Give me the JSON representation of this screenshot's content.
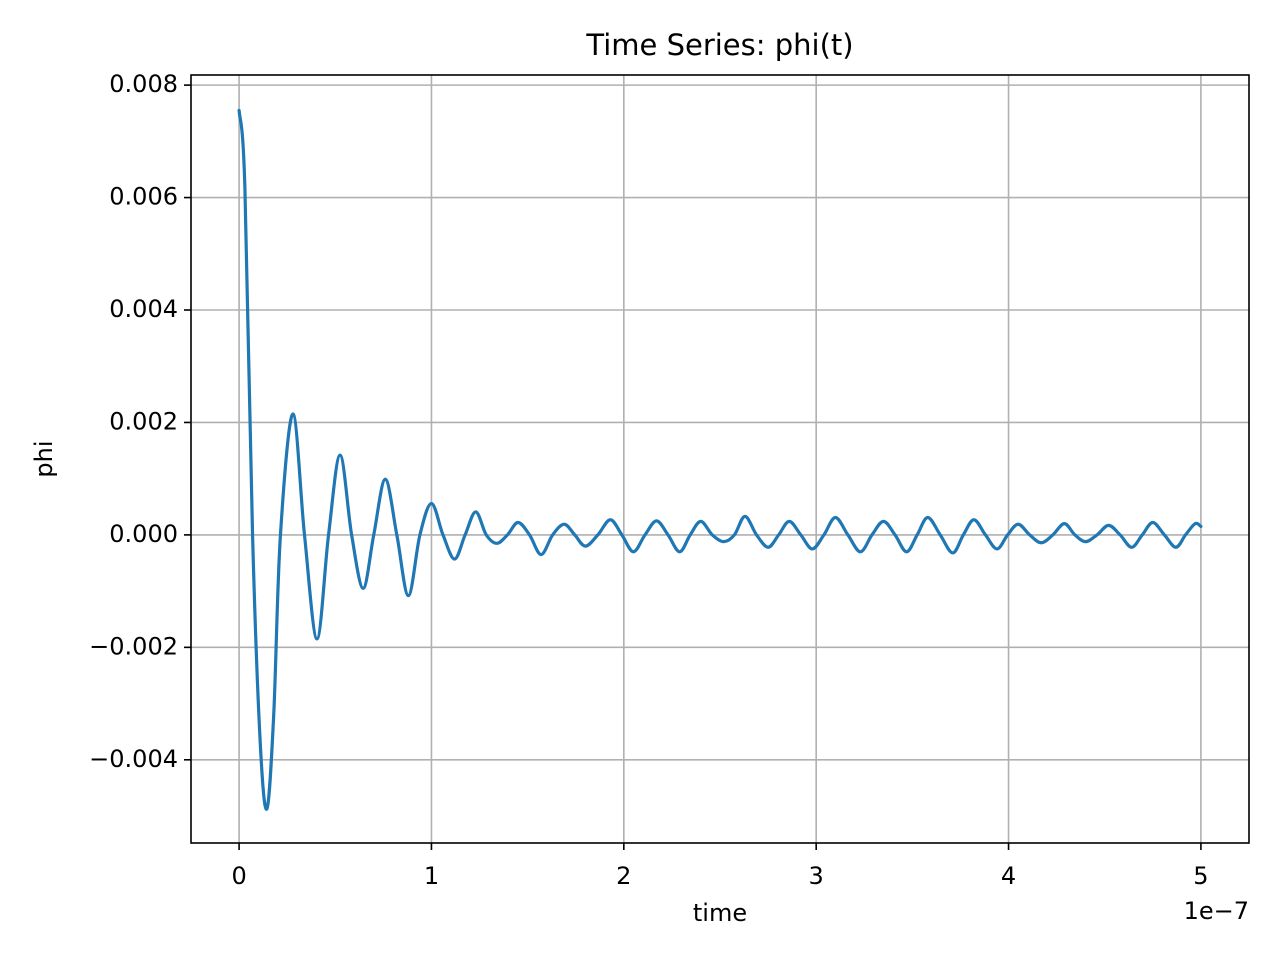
{
  "chart_data": {
    "type": "line",
    "title": "Time Series: phi(t)",
    "xlabel": "time",
    "ylabel": "phi",
    "x_offset_label": "1e−7",
    "grid": true,
    "xlim": [
      -0.25,
      5.25
    ],
    "xticks": [
      0,
      1,
      2,
      3,
      4,
      5
    ],
    "ylim": [
      -0.00548,
      0.00818
    ],
    "yticks": [
      {
        "value": -0.004,
        "label": "−0.004"
      },
      {
        "value": -0.002,
        "label": "−0.002"
      },
      {
        "value": 0,
        "label": "0.000"
      },
      0.002,
      0.004,
      0.006,
      0.008
    ],
    "x": [
      0,
      0.03,
      0.07,
      0.11,
      0.145,
      0.18,
      0.215,
      0.28,
      0.34,
      0.405,
      0.465,
      0.525,
      0.585,
      0.645,
      0.7,
      0.76,
      0.82,
      0.88,
      0.94,
      1.0,
      1.06,
      1.12,
      1.175,
      1.23,
      1.285,
      1.34,
      1.395,
      1.45,
      1.51,
      1.57,
      1.63,
      1.69,
      1.745,
      1.8,
      1.865,
      1.93,
      1.99,
      2.05,
      2.11,
      2.17,
      2.23,
      2.29,
      2.345,
      2.4,
      2.46,
      2.52,
      2.575,
      2.63,
      2.69,
      2.75,
      2.805,
      2.86,
      2.92,
      2.98,
      3.04,
      3.1,
      3.165,
      3.23,
      3.29,
      3.35,
      3.41,
      3.47,
      3.525,
      3.58,
      3.645,
      3.71,
      3.765,
      3.82,
      3.88,
      3.94,
      3.995,
      4.05,
      4.11,
      4.17,
      4.23,
      4.29,
      4.345,
      4.4,
      4.46,
      4.52,
      4.58,
      4.64,
      4.695,
      4.75,
      4.81,
      4.87,
      4.92,
      4.97,
      5.0
    ],
    "series": [
      {
        "name": "phi",
        "color": "#1f77b4",
        "values": [
          0.00755,
          0.0062,
          0,
          -0.0037,
          -0.00487,
          -0.0032,
          0,
          0.00215,
          0,
          -0.00185,
          0,
          0.00142,
          0,
          -0.00095,
          0,
          0.00099,
          0,
          -0.00108,
          0,
          0.00056,
          0,
          -0.00043,
          0,
          0.00041,
          0,
          -0.00015,
          0,
          0.00022,
          0,
          -0.00035,
          0,
          0.00019,
          0,
          -0.0002,
          0,
          0.00027,
          0,
          -0.0003,
          0,
          0.00025,
          0,
          -0.0003,
          0,
          0.00024,
          0,
          -0.00012,
          0,
          0.00033,
          0,
          -0.00022,
          0,
          0.00024,
          0,
          -0.00025,
          0,
          0.00031,
          0,
          -0.0003,
          0,
          0.00024,
          0,
          -0.0003,
          0,
          0.00031,
          0,
          -0.00032,
          0,
          0.00027,
          0,
          -0.00025,
          0,
          0.00019,
          0,
          -0.00014,
          0,
          0.0002,
          0,
          -0.00012,
          0,
          0.00017,
          0,
          -0.00022,
          0,
          0.00022,
          0,
          -0.00022,
          0,
          0.0002,
          0.00015
        ]
      }
    ]
  }
}
